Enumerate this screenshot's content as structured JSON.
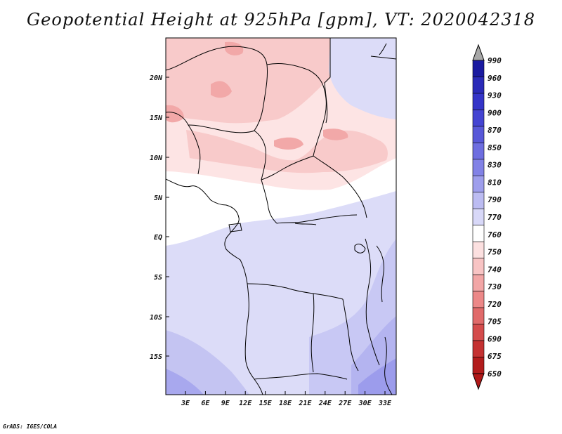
{
  "title": "Geopotential Height at 925hPa [gpm], VT: 2020042318",
  "footer": "GrADS: IGES/COLA",
  "map": {
    "region": "Central & West Africa",
    "lat_labels": [
      "20N",
      "15N",
      "10N",
      "5N",
      "EQ",
      "5S",
      "10S",
      "15S"
    ],
    "lon_labels": [
      "3E",
      "6E",
      "9E",
      "12E",
      "15E",
      "18E",
      "21E",
      "24E",
      "27E",
      "30E",
      "33E"
    ]
  },
  "colorbar": {
    "labels": [
      "990",
      "960",
      "930",
      "900",
      "870",
      "850",
      "830",
      "810",
      "790",
      "770",
      "760",
      "750",
      "740",
      "730",
      "720",
      "705",
      "690",
      "675",
      "650"
    ],
    "colors": [
      "#1a1aa0",
      "#2a2ab8",
      "#3434c8",
      "#4444d2",
      "#5858d8",
      "#6e6ee0",
      "#8282e6",
      "#9e9eec",
      "#bcbcf2",
      "#d8d8f8",
      "#ffffff",
      "#fce0e0",
      "#f8c4c4",
      "#f2a6a6",
      "#ec8888",
      "#e06a6a",
      "#d44c4c",
      "#c43232",
      "#b21c1c"
    ],
    "top_color": "#a8a8a8",
    "bottom_color": "#b01818"
  }
}
